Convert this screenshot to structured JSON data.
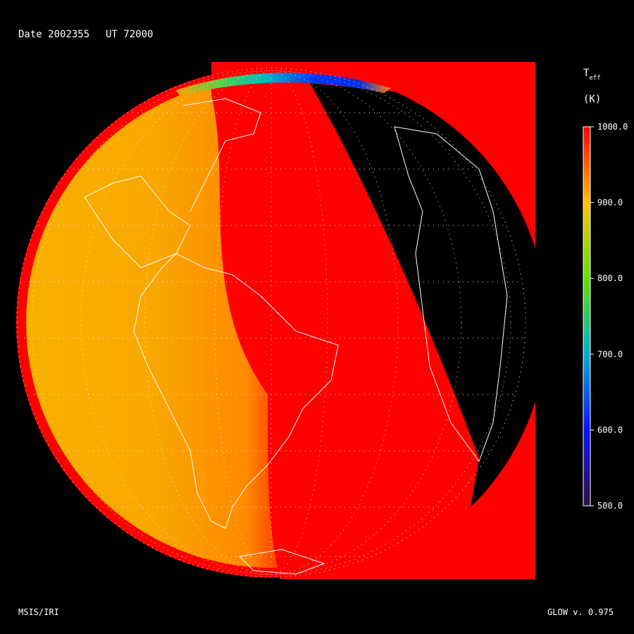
{
  "header": {
    "date_label": "Date 2002355",
    "ut_label": "UT 72000"
  },
  "colorbar": {
    "title": "T",
    "title_sub": "eff",
    "unit": "(K)",
    "range": [
      500,
      1000
    ],
    "ticks": [
      {
        "value": 1000,
        "label": "1000.0"
      },
      {
        "value": 900,
        "label": "900.0"
      },
      {
        "value": 800,
        "label": "800.0"
      },
      {
        "value": 700,
        "label": "700.0"
      },
      {
        "value": 600,
        "label": "600.0"
      },
      {
        "value": 500,
        "label": "500.0"
      }
    ]
  },
  "footer": {
    "left": "MSIS/IRI",
    "right": "GLOW v. 0.975"
  }
}
